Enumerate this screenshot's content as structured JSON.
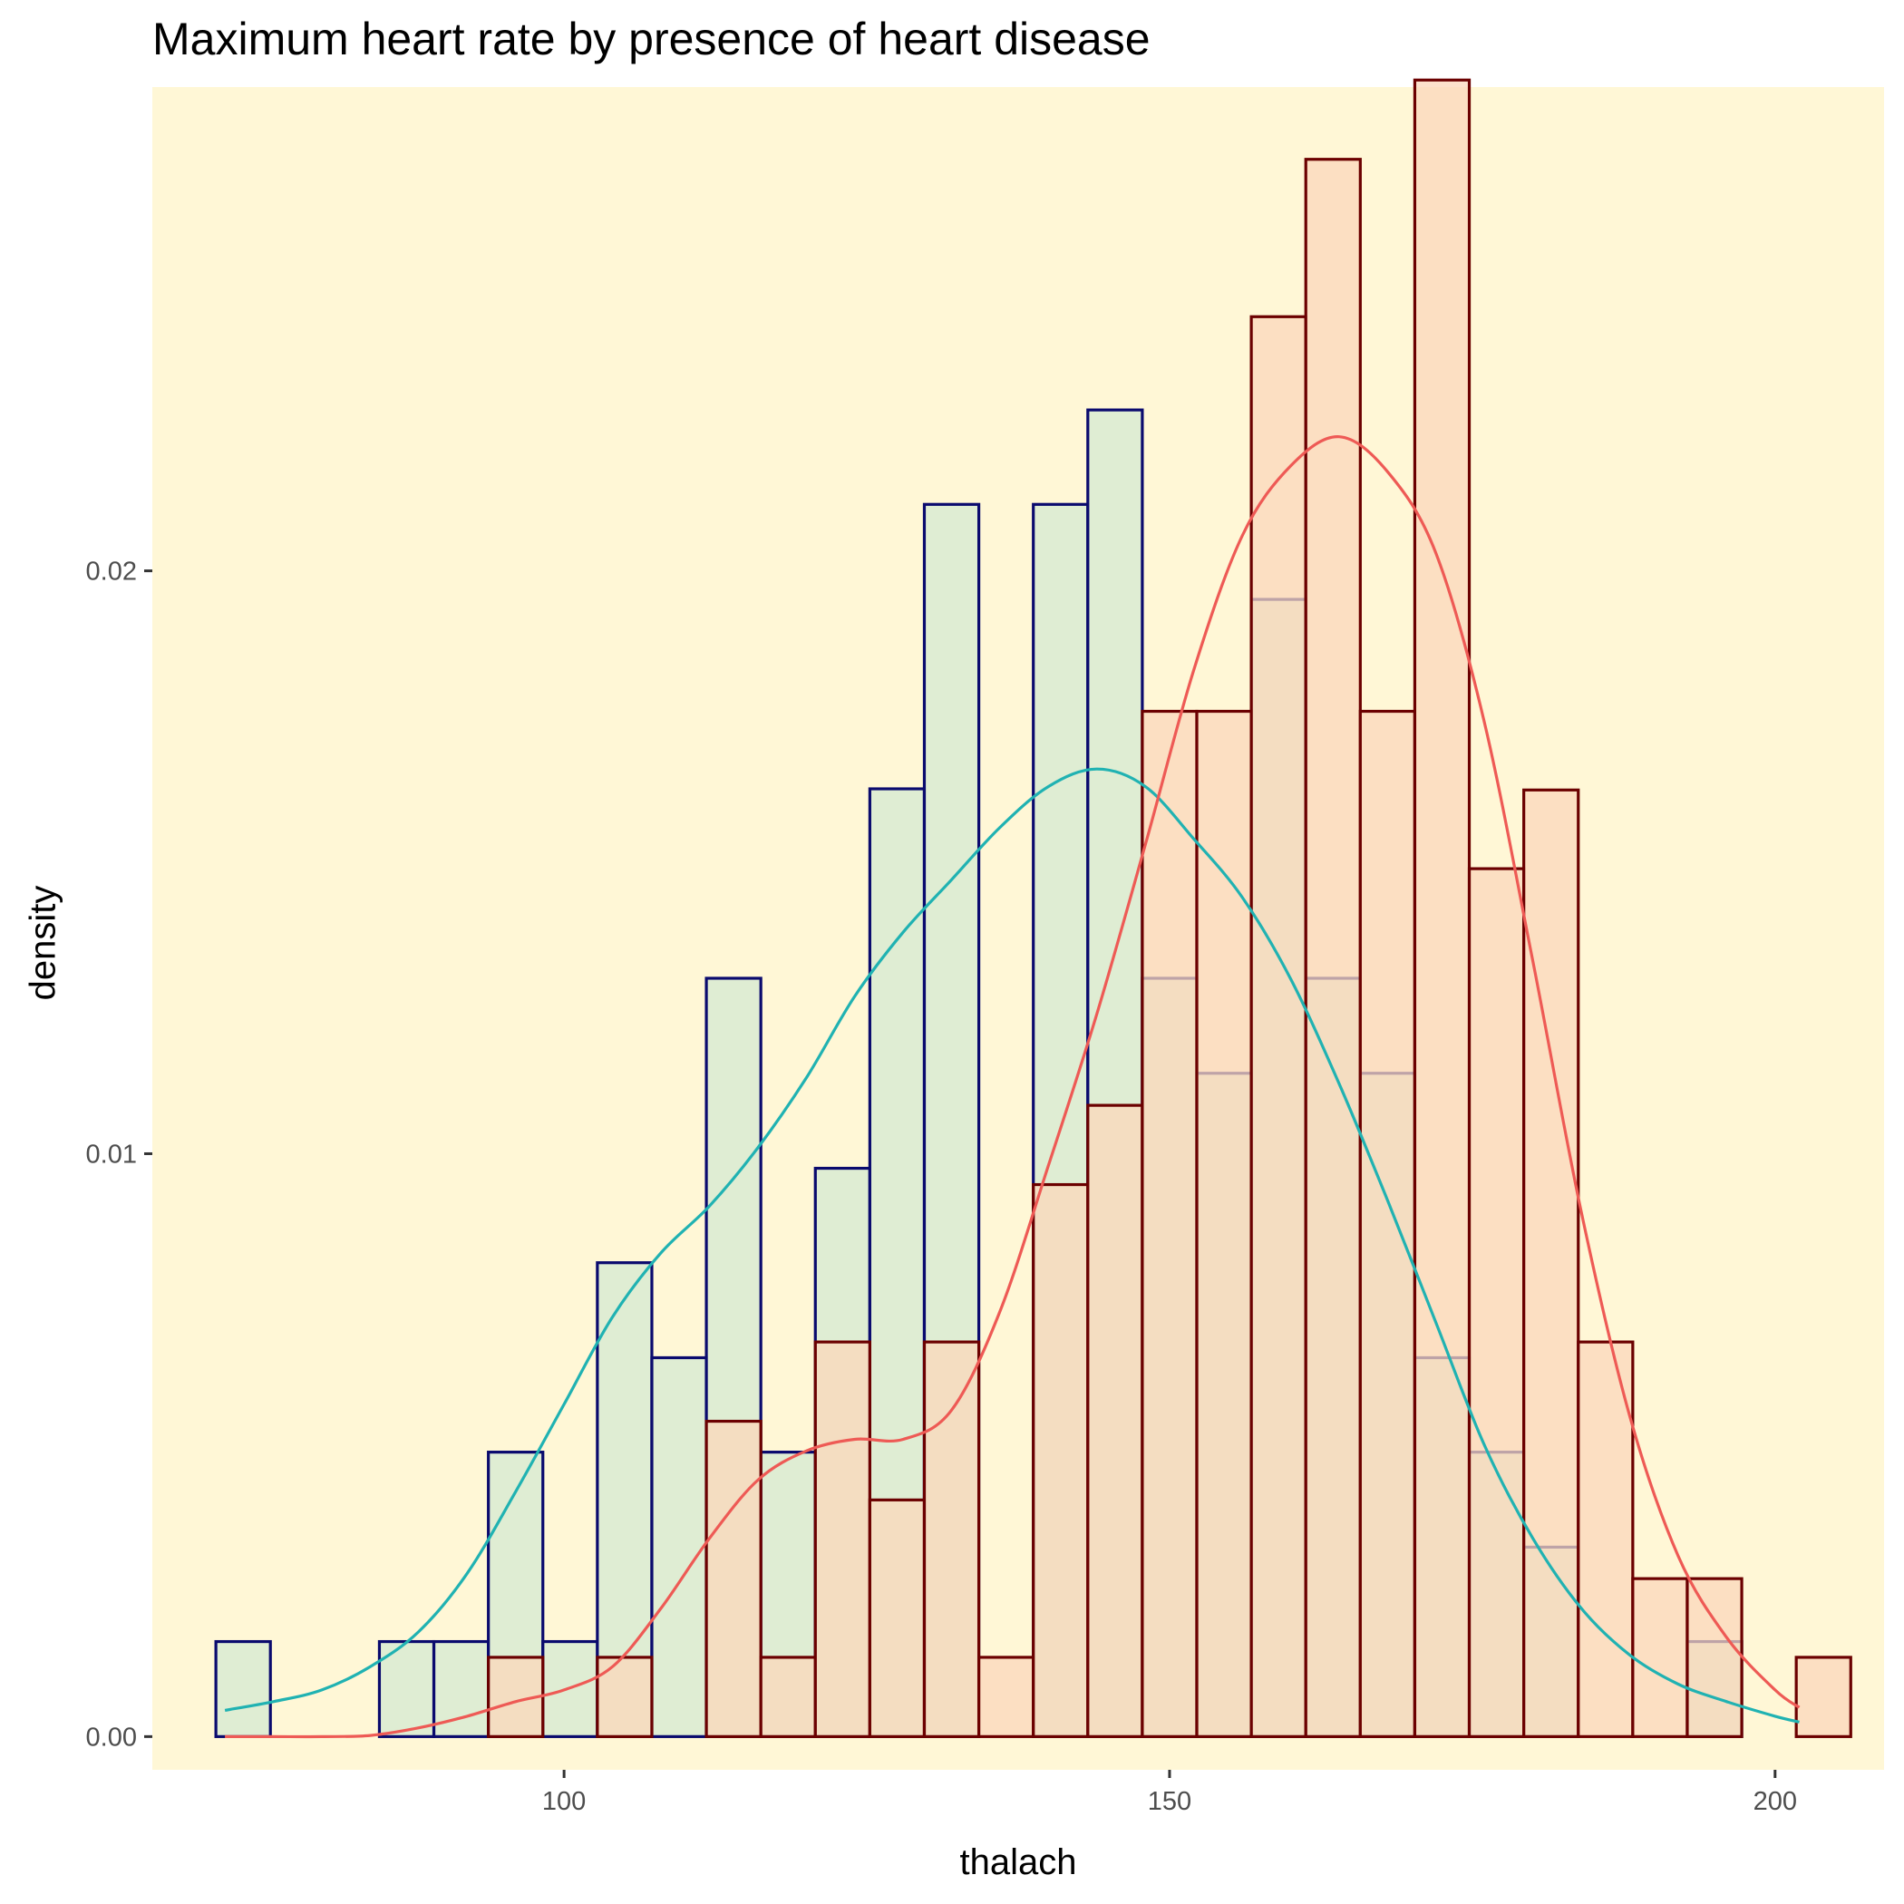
{
  "chart_data": {
    "type": "histogram",
    "title": "Maximum heart rate by presence of heart disease",
    "xlabel": "thalach",
    "ylabel": "density",
    "xlim": [
      66,
      209
    ],
    "ylim": [
      -0.00057,
      0.0283
    ],
    "x_ticks": [
      100,
      150,
      200
    ],
    "x_tick_labels": [
      "100",
      "150",
      "200"
    ],
    "y_ticks": [
      0.0,
      0.01,
      0.02
    ],
    "y_tick_labels": [
      "0.00",
      "0.01",
      "0.02"
    ],
    "grid": false,
    "legend": "none",
    "bin_width": 4.5,
    "bin_starts": [
      71.25,
      75.75,
      80.25,
      84.75,
      89.25,
      93.75,
      98.25,
      102.75,
      107.25,
      111.75,
      116.25,
      120.75,
      125.25,
      129.75,
      134.25,
      138.75,
      143.25,
      147.75,
      152.25,
      156.75,
      161.25,
      165.75,
      170.25,
      174.75,
      179.25,
      183.75,
      188.25,
      192.75,
      197.25,
      201.75
    ],
    "series": [
      {
        "fill": "#d4ead2",
        "outline": "#0a0a6e",
        "values": [
          0.00163,
          0,
          0,
          0.00163,
          0.00163,
          0.00488,
          0.00163,
          0.00813,
          0.0065,
          0.01301,
          0.00488,
          0.00975,
          0.01626,
          0.02114,
          0,
          0.02114,
          0.02276,
          0.01301,
          0.01138,
          0.01951,
          0.01301,
          0.01138,
          0.0065,
          0.00488,
          0.00325,
          0,
          0,
          0.00163,
          0,
          0
        ],
        "density_curve": {
          "color": "#20b2b2",
          "x": [
            72,
            76,
            80,
            84,
            88,
            92,
            96,
            100,
            104,
            108,
            112,
            116,
            120,
            124,
            128,
            132,
            136,
            140,
            144,
            148,
            152,
            156,
            160,
            164,
            168,
            172,
            176,
            180,
            184,
            188,
            192,
            196,
            200,
            202
          ],
          "y": [
            0.00045,
            0.0006,
            0.0008,
            0.0012,
            0.0018,
            0.0028,
            0.0042,
            0.0057,
            0.0072,
            0.0083,
            0.0091,
            0.0101,
            0.0113,
            0.0127,
            0.0138,
            0.0147,
            0.0156,
            0.0163,
            0.0166,
            0.0163,
            0.0154,
            0.0144,
            0.013,
            0.0112,
            0.0092,
            0.0071,
            0.005,
            0.0034,
            0.0022,
            0.0014,
            0.0009,
            0.0006,
            0.00035,
            0.00025
          ]
        }
      },
      {
        "fill": "#fbd7bb",
        "outline": "#6b0000",
        "values": [
          0,
          0,
          0,
          0,
          0,
          0.00136,
          0,
          0.00136,
          0,
          0.00541,
          0.00136,
          0.00677,
          0.00406,
          0.00677,
          0.00136,
          0.00947,
          0.01083,
          0.01759,
          0.01759,
          0.02436,
          0.02706,
          0.01759,
          0.02842,
          0.01489,
          0.01624,
          0.00677,
          0.00271,
          0.00271,
          0,
          0.00136
        ],
        "density_curve": {
          "color": "#ee5a55",
          "x": [
            72,
            76,
            80,
            84,
            88,
            92,
            96,
            100,
            104,
            108,
            112,
            116,
            120,
            124,
            128,
            132,
            136,
            140,
            144,
            148,
            152,
            156,
            160,
            164,
            168,
            172,
            176,
            180,
            184,
            188,
            192,
            196,
            200,
            202
          ],
          "y": [
            0,
            0,
            0,
            2e-05,
            0.00015,
            0.00035,
            0.0006,
            0.0008,
            0.0012,
            0.0022,
            0.0034,
            0.0044,
            0.0049,
            0.0051,
            0.0051,
            0.0056,
            0.0073,
            0.0098,
            0.0124,
            0.0153,
            0.0183,
            0.0206,
            0.0218,
            0.0223,
            0.0217,
            0.0203,
            0.0174,
            0.0133,
            0.009,
            0.0055,
            0.0031,
            0.0017,
            0.0008,
            0.0005
          ]
        }
      }
    ],
    "colors": {
      "panel_background": "#fff7d6",
      "page_background": "#ffffff",
      "axis_text": "#4d4d4d",
      "tick": "#333333"
    }
  }
}
